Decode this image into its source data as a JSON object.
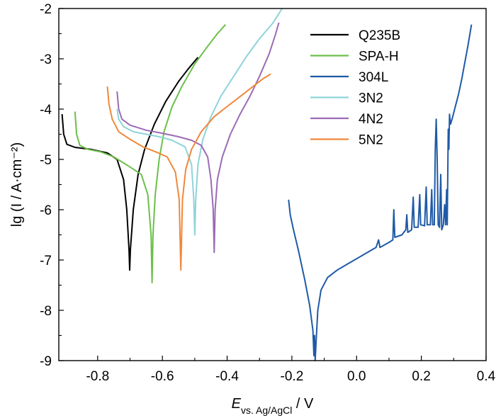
{
  "chart_data": {
    "type": "line",
    "xlabel": {
      "main": "E",
      "sub": "vs. Ag/AgCl",
      "unit": " / V"
    },
    "ylabel": "lg (I / A·cm⁻²)",
    "xlim": [
      -0.92,
      0.4
    ],
    "ylim": [
      -9,
      -2
    ],
    "xticks": [
      -0.8,
      -0.6,
      -0.4,
      -0.2,
      0.0,
      0.2,
      0.4
    ],
    "xtick_labels": [
      "-0.8",
      "-0.6",
      "-0.4",
      "-0.2",
      "0.0",
      "0.2",
      "0.4"
    ],
    "yticks": [
      -9,
      -8,
      -7,
      -6,
      -5,
      -4,
      -3,
      -2
    ],
    "ytick_labels": [
      "-9",
      "-8",
      "-7",
      "-6",
      "-5",
      "-4",
      "-3",
      "-2"
    ],
    "legend_position": "top-right",
    "series": [
      {
        "name": "Q235B",
        "color": "#000000",
        "points": [
          [
            -0.91,
            -4.1
          ],
          [
            -0.905,
            -4.5
          ],
          [
            -0.895,
            -4.7
          ],
          [
            -0.87,
            -4.76
          ],
          [
            -0.82,
            -4.8
          ],
          [
            -0.77,
            -4.87
          ],
          [
            -0.74,
            -5.0
          ],
          [
            -0.72,
            -5.4
          ],
          [
            -0.71,
            -6.0
          ],
          [
            -0.703,
            -6.8
          ],
          [
            -0.701,
            -7.2
          ],
          [
            -0.699,
            -6.8
          ],
          [
            -0.69,
            -6.0
          ],
          [
            -0.675,
            -5.3
          ],
          [
            -0.655,
            -4.8
          ],
          [
            -0.625,
            -4.3
          ],
          [
            -0.59,
            -3.85
          ],
          [
            -0.55,
            -3.45
          ],
          [
            -0.52,
            -3.2
          ],
          [
            -0.49,
            -2.97
          ]
        ]
      },
      {
        "name": "SPA-H",
        "color": "#6cbf4a",
        "points": [
          [
            -0.87,
            -4.05
          ],
          [
            -0.865,
            -4.5
          ],
          [
            -0.855,
            -4.72
          ],
          [
            -0.83,
            -4.8
          ],
          [
            -0.79,
            -4.85
          ],
          [
            -0.75,
            -4.95
          ],
          [
            -0.7,
            -5.15
          ],
          [
            -0.665,
            -5.3
          ],
          [
            -0.645,
            -5.7
          ],
          [
            -0.635,
            -6.5
          ],
          [
            -0.632,
            -7.45
          ],
          [
            -0.629,
            -6.5
          ],
          [
            -0.622,
            -5.7
          ],
          [
            -0.61,
            -5.0
          ],
          [
            -0.595,
            -4.45
          ],
          [
            -0.57,
            -3.95
          ],
          [
            -0.54,
            -3.55
          ],
          [
            -0.5,
            -3.1
          ],
          [
            -0.46,
            -2.75
          ],
          [
            -0.43,
            -2.5
          ],
          [
            -0.405,
            -2.32
          ]
        ]
      },
      {
        "name": "304L",
        "color": "#1f5aa6",
        "points": [
          [
            -0.21,
            -5.8
          ],
          [
            -0.205,
            -6.1
          ],
          [
            -0.195,
            -6.4
          ],
          [
            -0.18,
            -6.8
          ],
          [
            -0.16,
            -7.4
          ],
          [
            -0.145,
            -7.9
          ],
          [
            -0.135,
            -8.4
          ],
          [
            -0.132,
            -8.9
          ],
          [
            -0.13,
            -8.5
          ],
          [
            -0.128,
            -9.0
          ],
          [
            -0.125,
            -8.6
          ],
          [
            -0.12,
            -8.0
          ],
          [
            -0.11,
            -7.6
          ],
          [
            -0.09,
            -7.35
          ],
          [
            -0.06,
            -7.2
          ],
          [
            -0.02,
            -7.05
          ],
          [
            0.02,
            -6.9
          ],
          [
            0.06,
            -6.75
          ],
          [
            0.068,
            -6.6
          ],
          [
            0.072,
            -6.75
          ],
          [
            0.1,
            -6.65
          ],
          [
            0.112,
            -6.6
          ],
          [
            0.115,
            -6.0
          ],
          [
            0.118,
            -6.55
          ],
          [
            0.14,
            -6.5
          ],
          [
            0.152,
            -6.4
          ],
          [
            0.155,
            -6.1
          ],
          [
            0.158,
            -6.45
          ],
          [
            0.17,
            -6.4
          ],
          [
            0.175,
            -5.75
          ],
          [
            0.178,
            -6.35
          ],
          [
            0.19,
            -6.35
          ],
          [
            0.195,
            -5.7
          ],
          [
            0.198,
            -6.3
          ],
          [
            0.21,
            -6.32
          ],
          [
            0.215,
            -5.55
          ],
          [
            0.218,
            -6.3
          ],
          [
            0.228,
            -6.3
          ],
          [
            0.232,
            -5.6
          ],
          [
            0.235,
            -6.3
          ],
          [
            0.24,
            -6.3
          ],
          [
            0.243,
            -4.8
          ],
          [
            0.246,
            -4.2
          ],
          [
            0.249,
            -5.0
          ],
          [
            0.252,
            -6.3
          ],
          [
            0.256,
            -6.35
          ],
          [
            0.26,
            -5.3
          ],
          [
            0.263,
            -6.4
          ],
          [
            0.268,
            -6.3
          ],
          [
            0.272,
            -5.9
          ],
          [
            0.275,
            -6.3
          ],
          [
            0.278,
            -5.6
          ],
          [
            0.28,
            -6.3
          ],
          [
            0.283,
            -4.4
          ],
          [
            0.285,
            -4.8
          ],
          [
            0.287,
            -4.1
          ],
          [
            0.29,
            -4.3
          ],
          [
            0.295,
            -4.2
          ],
          [
            0.305,
            -3.95
          ],
          [
            0.315,
            -3.7
          ],
          [
            0.325,
            -3.4
          ],
          [
            0.335,
            -3.05
          ],
          [
            0.345,
            -2.7
          ],
          [
            0.355,
            -2.32
          ]
        ]
      },
      {
        "name": "3N2",
        "color": "#8fd3d9",
        "points": [
          [
            -0.74,
            -4.0
          ],
          [
            -0.735,
            -4.2
          ],
          [
            -0.72,
            -4.35
          ],
          [
            -0.69,
            -4.45
          ],
          [
            -0.65,
            -4.5
          ],
          [
            -0.61,
            -4.55
          ],
          [
            -0.57,
            -4.62
          ],
          [
            -0.53,
            -4.75
          ],
          [
            -0.51,
            -5.1
          ],
          [
            -0.503,
            -5.8
          ],
          [
            -0.5,
            -6.5
          ],
          [
            -0.497,
            -5.8
          ],
          [
            -0.49,
            -5.1
          ],
          [
            -0.475,
            -4.6
          ],
          [
            -0.45,
            -4.15
          ],
          [
            -0.42,
            -3.75
          ],
          [
            -0.38,
            -3.35
          ],
          [
            -0.34,
            -2.95
          ],
          [
            -0.3,
            -2.6
          ],
          [
            -0.26,
            -2.3
          ],
          [
            -0.23,
            -2.0
          ]
        ]
      },
      {
        "name": "4N2",
        "color": "#9b6bb5",
        "points": [
          [
            -0.74,
            -3.65
          ],
          [
            -0.735,
            -4.0
          ],
          [
            -0.725,
            -4.2
          ],
          [
            -0.7,
            -4.32
          ],
          [
            -0.65,
            -4.42
          ],
          [
            -0.6,
            -4.48
          ],
          [
            -0.55,
            -4.55
          ],
          [
            -0.51,
            -4.62
          ],
          [
            -0.48,
            -4.72
          ],
          [
            -0.46,
            -4.95
          ],
          [
            -0.45,
            -5.4
          ],
          [
            -0.443,
            -6.0
          ],
          [
            -0.44,
            -6.85
          ],
          [
            -0.437,
            -6.0
          ],
          [
            -0.43,
            -5.4
          ],
          [
            -0.415,
            -4.95
          ],
          [
            -0.39,
            -4.5
          ],
          [
            -0.36,
            -4.1
          ],
          [
            -0.33,
            -3.75
          ],
          [
            -0.3,
            -3.35
          ],
          [
            -0.27,
            -2.9
          ],
          [
            -0.25,
            -2.5
          ],
          [
            -0.24,
            -2.28
          ]
        ]
      },
      {
        "name": "5N2",
        "color": "#f0883a",
        "points": [
          [
            -0.77,
            -3.55
          ],
          [
            -0.765,
            -3.9
          ],
          [
            -0.755,
            -4.2
          ],
          [
            -0.735,
            -4.45
          ],
          [
            -0.7,
            -4.6
          ],
          [
            -0.66,
            -4.75
          ],
          [
            -0.62,
            -4.85
          ],
          [
            -0.585,
            -4.95
          ],
          [
            -0.56,
            -5.25
          ],
          [
            -0.548,
            -5.8
          ],
          [
            -0.543,
            -7.2
          ],
          [
            -0.538,
            -5.8
          ],
          [
            -0.528,
            -5.2
          ],
          [
            -0.51,
            -4.8
          ],
          [
            -0.48,
            -4.45
          ],
          [
            -0.44,
            -4.15
          ],
          [
            -0.4,
            -3.95
          ],
          [
            -0.36,
            -3.75
          ],
          [
            -0.32,
            -3.55
          ],
          [
            -0.29,
            -3.4
          ],
          [
            -0.265,
            -3.3
          ]
        ]
      }
    ]
  }
}
